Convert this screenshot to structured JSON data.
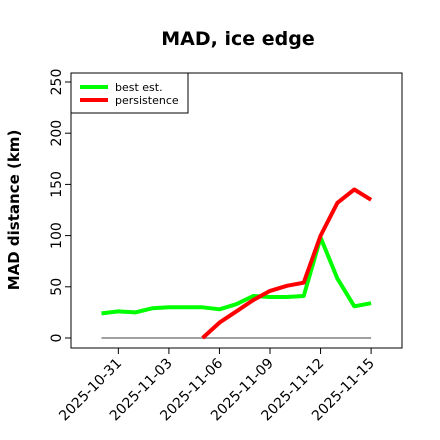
{
  "chart_data": {
    "type": "line",
    "title": "MAD, ice edge",
    "xlabel": "",
    "ylabel": "MAD distance (km)",
    "x": [
      "2025-10-30",
      "2025-10-31",
      "2025-11-01",
      "2025-11-02",
      "2025-11-03",
      "2025-11-04",
      "2025-11-05",
      "2025-11-06",
      "2025-11-07",
      "2025-11-08",
      "2025-11-09",
      "2025-11-10",
      "2025-11-11",
      "2025-11-12",
      "2025-11-13",
      "2025-11-14",
      "2025-11-15"
    ],
    "x_tick_labels": [
      "2025-10-31",
      "2025-11-03",
      "2025-11-06",
      "2025-11-09",
      "2025-11-12",
      "2025-11-15"
    ],
    "x_tick_index": [
      1,
      4,
      7,
      10,
      13,
      16
    ],
    "ylim": [
      0,
      260
    ],
    "y_ticks": [
      0,
      50,
      100,
      150,
      200,
      250
    ],
    "legend_position": "top-left",
    "series": [
      {
        "name": "best est.",
        "color": "#00ff00",
        "values": [
          24,
          26,
          25,
          29,
          30,
          30,
          30,
          28,
          33,
          41,
          40,
          40,
          41,
          98,
          58,
          31,
          34
        ]
      },
      {
        "name": "persistence",
        "color": "#ff0000",
        "values": [
          null,
          null,
          null,
          null,
          null,
          null,
          0,
          15,
          26,
          37,
          46,
          51,
          54,
          100,
          132,
          145,
          135
        ]
      }
    ],
    "baseline": {
      "value": 0,
      "color": "#808080"
    }
  }
}
